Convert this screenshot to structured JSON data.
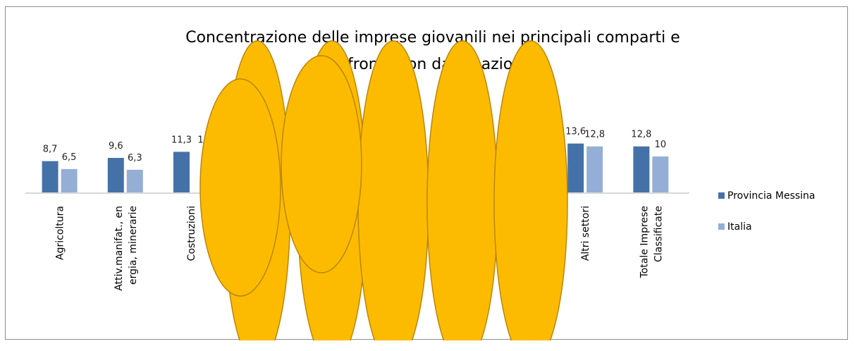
{
  "chart_data": {
    "type": "bar",
    "title_lines": [
      "Concentrazione delle imprese giovanili nei principali comparti e",
      "confronto con dato nazionale"
    ],
    "categories": [
      [
        "Agricoltura"
      ],
      [
        "Attiv.manifat., en",
        "ergia, minerarie"
      ],
      [
        "Costruzioni"
      ],
      [
        ""
      ],
      [
        ""
      ],
      [
        ""
      ],
      [
        ""
      ],
      [
        ""
      ],
      [
        "Altri settori"
      ],
      [
        "Totale Imprese",
        "Classificate"
      ]
    ],
    "series": [
      {
        "name": "Provincia Messina",
        "color": "#4472a8",
        "values": [
          8.7,
          9.6,
          11.3,
          null,
          null,
          null,
          null,
          null,
          13.6,
          12.8
        ]
      },
      {
        "name": "Italia",
        "color": "#95aed6",
        "values": [
          6.5,
          6.3,
          null,
          null,
          null,
          null,
          null,
          null,
          12.8,
          10
        ]
      }
    ],
    "data_labels": [
      [
        "8,7",
        "9,6",
        "11,3",
        "",
        "",
        "",
        "",
        "",
        "13,6",
        "12,8"
      ],
      [
        "6,5",
        "6,3",
        "1",
        "",
        "",
        "",
        "",
        "",
        "12,8",
        "10"
      ]
    ],
    "ylim": [
      0,
      16
    ],
    "grid": false,
    "legend_position": "right",
    "occluder_color": "#fdbb00",
    "occluder_stroke": "#b8860b",
    "occluders": 6
  }
}
